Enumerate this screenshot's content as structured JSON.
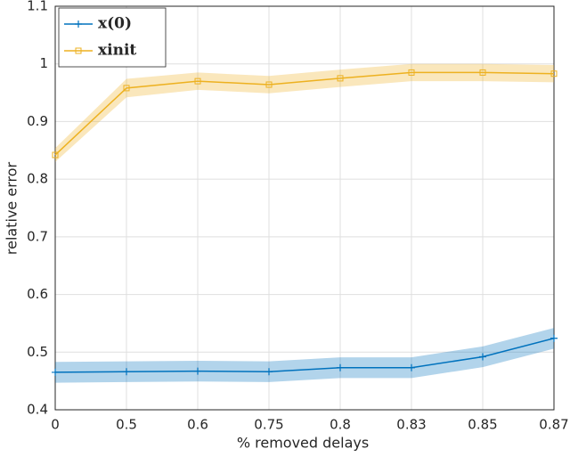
{
  "chart_data": {
    "type": "line",
    "x_label": "% removed delays",
    "y_label": "relative error",
    "categories": [
      "0",
      "0.5",
      "0.6",
      "0.75",
      "0.8",
      "0.83",
      "0.85",
      "0.87"
    ],
    "series": [
      {
        "name": "x(0)",
        "color": "#0072bd",
        "marker": "plus",
        "values": [
          0.465,
          0.466,
          0.467,
          0.466,
          0.473,
          0.473,
          0.492,
          0.524
        ],
        "lower": [
          0.447,
          0.448,
          0.449,
          0.448,
          0.455,
          0.455,
          0.474,
          0.506
        ],
        "upper": [
          0.483,
          0.484,
          0.485,
          0.484,
          0.491,
          0.491,
          0.51,
          0.542
        ]
      },
      {
        "name": "xinit",
        "color": "#edb120",
        "marker": "square",
        "values": [
          0.842,
          0.958,
          0.97,
          0.964,
          0.975,
          0.985,
          0.985,
          0.983
        ],
        "lower": [
          0.83,
          0.942,
          0.955,
          0.949,
          0.96,
          0.97,
          0.97,
          0.968
        ],
        "upper": [
          0.854,
          0.974,
          0.985,
          0.979,
          0.99,
          1.0,
          1.0,
          0.998
        ]
      }
    ],
    "ylim": [
      0.4,
      1.1
    ],
    "yticks": [
      0.4,
      0.5,
      0.6,
      0.7,
      0.8,
      0.9,
      1,
      1.1
    ],
    "grid": true,
    "legend": "upper left"
  }
}
